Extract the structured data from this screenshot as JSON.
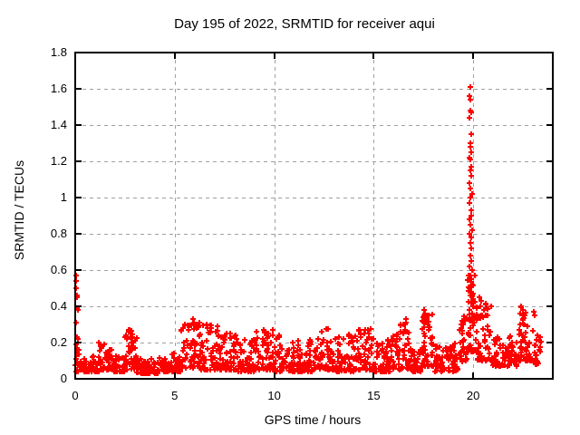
{
  "chart_data": {
    "type": "scatter",
    "title": "Day 195 of 2022, SRMTID for receiver aqui",
    "xlabel": "GPS time / hours",
    "ylabel": "SRMTID / TECUs",
    "xlim": [
      0,
      24
    ],
    "ylim": [
      0,
      1.8
    ],
    "xticks": [
      0,
      5,
      10,
      15,
      20
    ],
    "xtick_labels": [
      "0",
      "5",
      "10",
      "15",
      "20"
    ],
    "yticks": [
      0,
      0.2,
      0.4,
      0.6,
      0.8,
      1,
      1.2,
      1.4,
      1.6,
      1.8
    ],
    "ytick_labels": [
      "0",
      "0.2",
      "0.4",
      "0.6",
      "0.8",
      "1",
      "1.2",
      "1.4",
      "1.6",
      "1.8"
    ],
    "legend": "none",
    "grid": {
      "show": true,
      "color": "#a0a0a0",
      "dash": "4,4"
    },
    "border_color": "#000000",
    "background_color": "#ffffff",
    "marker": {
      "shape": "plus",
      "color": "#ff0000",
      "size": 7,
      "stroke_width": 2
    },
    "series": [
      {
        "name": "SRMTID",
        "notable_points": [
          [
            0.05,
            0.57
          ],
          [
            0.06,
            0.54
          ],
          [
            0.05,
            0.5
          ],
          [
            0.08,
            0.46
          ],
          [
            0.1,
            0.45
          ],
          [
            0.07,
            0.39
          ],
          [
            0.12,
            0.38
          ],
          [
            0.06,
            0.31
          ],
          [
            0.1,
            0.23
          ],
          [
            0.15,
            0.22
          ],
          [
            0.04,
            0.19
          ],
          [
            0.18,
            0.16
          ],
          [
            2.75,
            0.27
          ],
          [
            2.8,
            0.25
          ],
          [
            2.85,
            0.23
          ],
          [
            5.9,
            0.33
          ],
          [
            5.95,
            0.31
          ],
          [
            6.0,
            0.3
          ],
          [
            6.1,
            0.28
          ],
          [
            6.6,
            0.3
          ],
          [
            6.85,
            0.28
          ],
          [
            7.8,
            0.25
          ],
          [
            9.5,
            0.26
          ],
          [
            12.4,
            0.26
          ],
          [
            14.7,
            0.27
          ],
          [
            16.6,
            0.33
          ],
          [
            16.62,
            0.31
          ],
          [
            17.5,
            0.34
          ],
          [
            17.55,
            0.38
          ],
          [
            17.6,
            0.36
          ],
          [
            17.65,
            0.33
          ],
          [
            17.58,
            0.31
          ],
          [
            19.5,
            0.3
          ],
          [
            19.6,
            0.32
          ],
          [
            19.85,
            1.61
          ],
          [
            19.82,
            1.56
          ],
          [
            19.86,
            1.54
          ],
          [
            19.84,
            1.48
          ],
          [
            19.88,
            1.47
          ],
          [
            19.83,
            1.44
          ],
          [
            19.9,
            1.35
          ],
          [
            19.87,
            1.3
          ],
          [
            19.85,
            1.28
          ],
          [
            19.92,
            1.25
          ],
          [
            19.8,
            1.22
          ],
          [
            19.86,
            1.21
          ],
          [
            19.89,
            1.17
          ],
          [
            19.84,
            1.15
          ],
          [
            19.9,
            1.12
          ],
          [
            19.82,
            1.08
          ],
          [
            19.87,
            1.05
          ],
          [
            19.93,
            1.02
          ],
          [
            19.85,
            1.0
          ],
          [
            19.8,
            0.97
          ],
          [
            19.88,
            0.93
          ],
          [
            19.91,
            0.9
          ],
          [
            19.83,
            0.88
          ],
          [
            19.86,
            0.85
          ],
          [
            19.94,
            0.82
          ],
          [
            19.8,
            0.8
          ],
          [
            19.89,
            0.78
          ],
          [
            19.84,
            0.75
          ],
          [
            19.92,
            0.72
          ],
          [
            19.87,
            0.68
          ],
          [
            19.9,
            0.65
          ],
          [
            19.82,
            0.62
          ],
          [
            19.95,
            0.6
          ],
          [
            19.78,
            0.57
          ],
          [
            19.88,
            0.55
          ],
          [
            19.96,
            0.52
          ],
          [
            19.8,
            0.5
          ],
          [
            19.91,
            0.48
          ],
          [
            19.85,
            0.46
          ],
          [
            19.97,
            0.44
          ],
          [
            19.9,
            0.42
          ],
          [
            20.0,
            0.4
          ],
          [
            19.79,
            0.38
          ],
          [
            19.93,
            0.36
          ],
          [
            20.02,
            0.34
          ],
          [
            19.86,
            0.33
          ],
          [
            20.05,
            0.31
          ],
          [
            20.3,
            0.45
          ],
          [
            20.4,
            0.43
          ],
          [
            20.35,
            0.4
          ],
          [
            20.55,
            0.38
          ],
          [
            20.45,
            0.35
          ],
          [
            22.4,
            0.4
          ],
          [
            22.5,
            0.38
          ],
          [
            22.35,
            0.36
          ],
          [
            22.6,
            0.35
          ],
          [
            23.05,
            0.37
          ],
          [
            23.1,
            0.35
          ],
          [
            23.3,
            0.16
          ],
          [
            23.35,
            0.15
          ]
        ],
        "band_segments": [
          {
            "x0": 0.0,
            "x1": 0.3,
            "lo": 0.04,
            "hi": 0.18,
            "n": 20
          },
          {
            "x0": 0.3,
            "x1": 1.2,
            "lo": 0.04,
            "hi": 0.13,
            "n": 55
          },
          {
            "x0": 1.2,
            "x1": 1.9,
            "lo": 0.05,
            "hi": 0.2,
            "n": 45
          },
          {
            "x0": 1.9,
            "x1": 2.5,
            "lo": 0.04,
            "hi": 0.13,
            "n": 38
          },
          {
            "x0": 2.5,
            "x1": 3.1,
            "lo": 0.05,
            "hi": 0.27,
            "n": 40
          },
          {
            "x0": 3.1,
            "x1": 4.2,
            "lo": 0.03,
            "hi": 0.11,
            "n": 65
          },
          {
            "x0": 4.2,
            "x1": 5.3,
            "lo": 0.04,
            "hi": 0.14,
            "n": 65
          },
          {
            "x0": 5.3,
            "x1": 6.3,
            "lo": 0.06,
            "hi": 0.33,
            "n": 60
          },
          {
            "x0": 6.3,
            "x1": 7.2,
            "lo": 0.05,
            "hi": 0.3,
            "n": 55
          },
          {
            "x0": 7.2,
            "x1": 8.2,
            "lo": 0.05,
            "hi": 0.25,
            "n": 60
          },
          {
            "x0": 8.2,
            "x1": 9.0,
            "lo": 0.04,
            "hi": 0.22,
            "n": 50
          },
          {
            "x0": 9.0,
            "x1": 10.0,
            "lo": 0.05,
            "hi": 0.28,
            "n": 60
          },
          {
            "x0": 10.0,
            "x1": 11.0,
            "lo": 0.04,
            "hi": 0.25,
            "n": 60
          },
          {
            "x0": 11.0,
            "x1": 12.0,
            "lo": 0.04,
            "hi": 0.22,
            "n": 60
          },
          {
            "x0": 12.0,
            "x1": 13.0,
            "lo": 0.05,
            "hi": 0.28,
            "n": 60
          },
          {
            "x0": 13.0,
            "x1": 14.0,
            "lo": 0.04,
            "hi": 0.25,
            "n": 60
          },
          {
            "x0": 14.0,
            "x1": 15.0,
            "lo": 0.05,
            "hi": 0.28,
            "n": 60
          },
          {
            "x0": 15.0,
            "x1": 16.0,
            "lo": 0.04,
            "hi": 0.22,
            "n": 60
          },
          {
            "x0": 16.0,
            "x1": 16.8,
            "lo": 0.05,
            "hi": 0.33,
            "n": 50
          },
          {
            "x0": 16.8,
            "x1": 17.4,
            "lo": 0.04,
            "hi": 0.2,
            "n": 38
          },
          {
            "x0": 17.4,
            "x1": 18.0,
            "lo": 0.07,
            "hi": 0.38,
            "n": 45
          },
          {
            "x0": 18.0,
            "x1": 19.3,
            "lo": 0.04,
            "hi": 0.2,
            "n": 75
          },
          {
            "x0": 19.3,
            "x1": 19.7,
            "lo": 0.08,
            "hi": 0.35,
            "n": 30
          },
          {
            "x0": 19.7,
            "x1": 20.1,
            "lo": 0.15,
            "hi": 0.6,
            "n": 35
          },
          {
            "x0": 20.1,
            "x1": 21.0,
            "lo": 0.1,
            "hi": 0.45,
            "n": 55
          },
          {
            "x0": 21.0,
            "x1": 22.2,
            "lo": 0.07,
            "hi": 0.25,
            "n": 70
          },
          {
            "x0": 22.2,
            "x1": 23.0,
            "lo": 0.1,
            "hi": 0.4,
            "n": 50
          },
          {
            "x0": 23.0,
            "x1": 23.4,
            "lo": 0.08,
            "hi": 0.25,
            "n": 25
          }
        ]
      }
    ]
  }
}
